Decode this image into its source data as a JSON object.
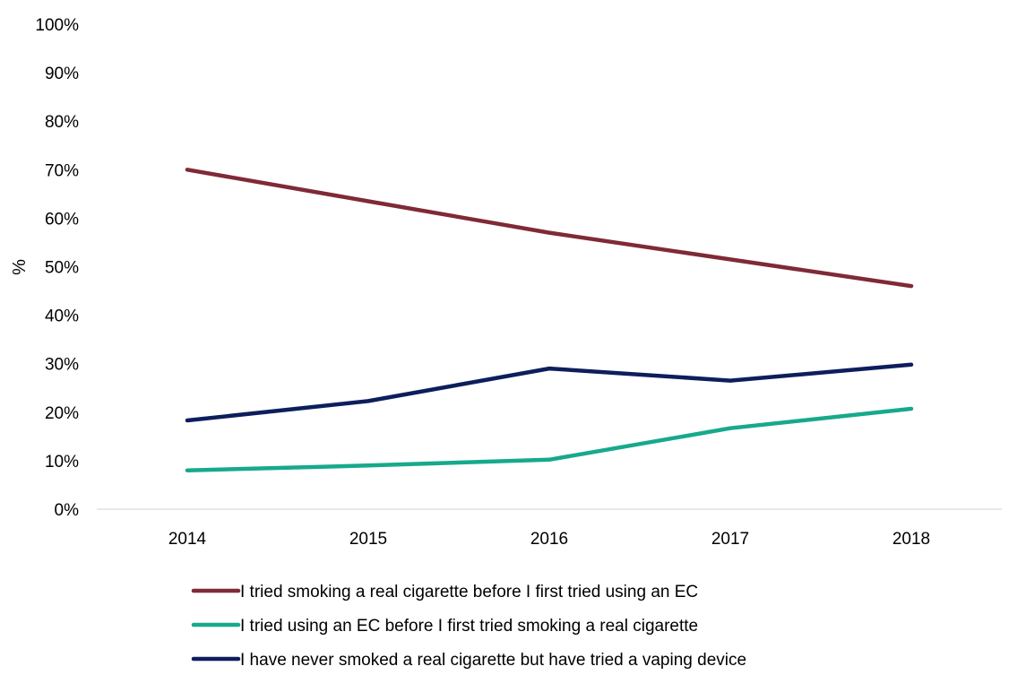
{
  "chart_data": {
    "type": "line",
    "title": "",
    "xlabel": "",
    "ylabel": "%",
    "ylim": [
      0,
      100
    ],
    "y_ticks": [
      "0%",
      "10%",
      "20%",
      "30%",
      "40%",
      "50%",
      "60%",
      "70%",
      "80%",
      "90%",
      "100%"
    ],
    "x": [
      "2014",
      "2015",
      "2016",
      "2017",
      "2018"
    ],
    "grid": false,
    "legend": "bottom",
    "series": [
      {
        "name": "I tried smoking a real cigarette before I first tried using an EC",
        "color": "#7f2a35",
        "values": [
          70,
          63.5,
          57,
          51.5,
          46
        ]
      },
      {
        "name": "I tried using an EC before I first tried smoking a real cigarette",
        "color": "#17a98c",
        "values": [
          8,
          9,
          10.2,
          16.7,
          20.7
        ]
      },
      {
        "name": "I have never smoked a real cigarette but have tried a vaping device",
        "color": "#0d1e5c",
        "values": [
          18.3,
          22.3,
          29,
          26.5,
          29.8
        ]
      }
    ]
  }
}
